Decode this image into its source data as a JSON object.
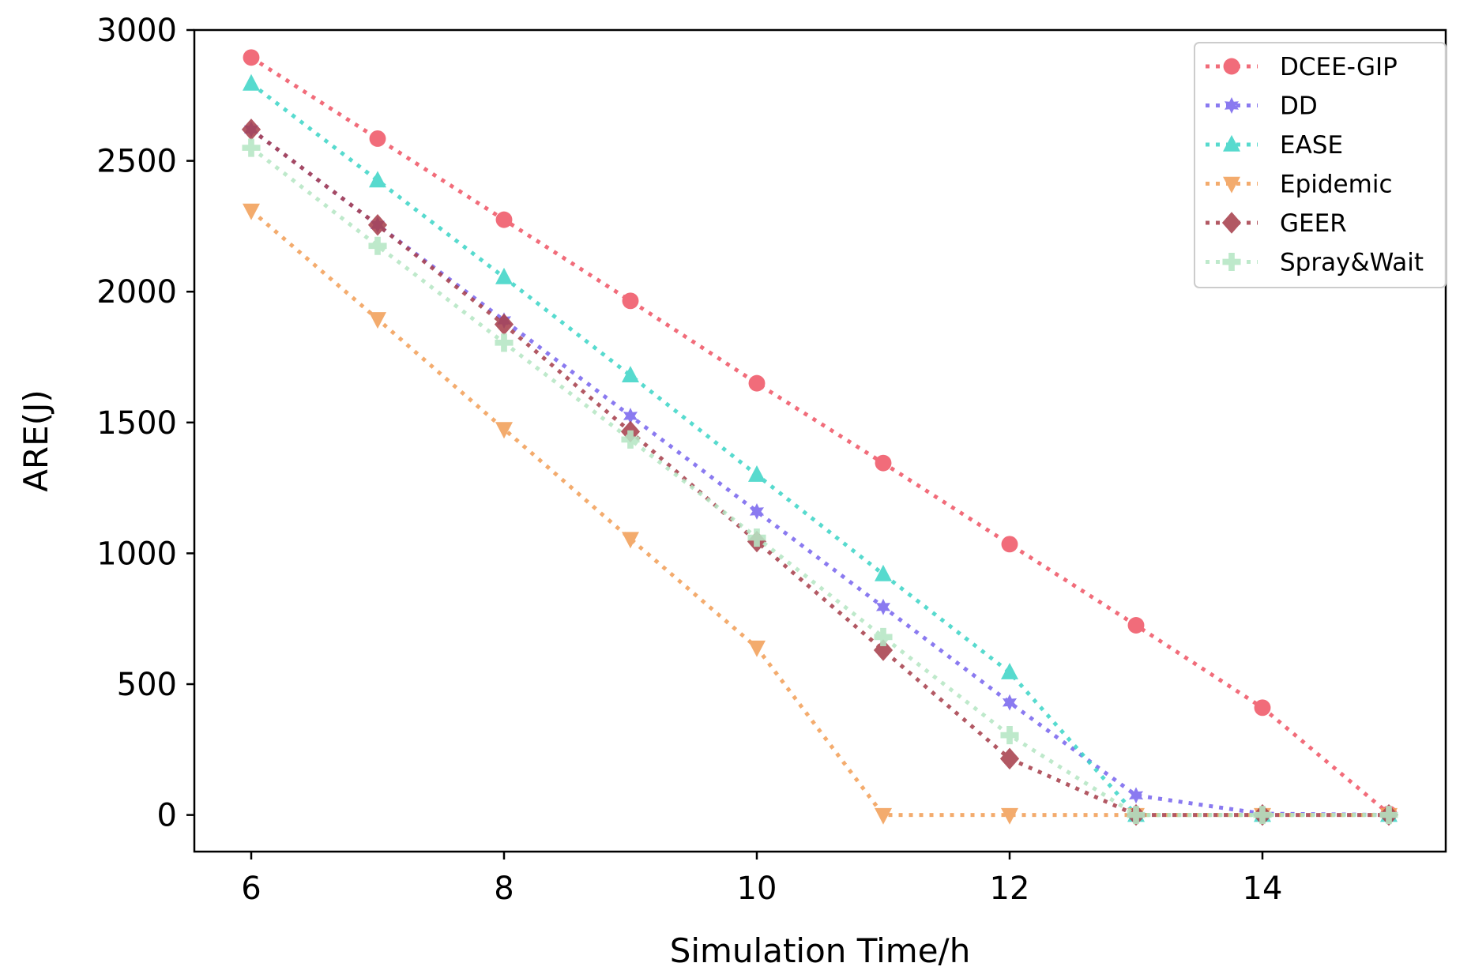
{
  "chart_data": {
    "type": "line",
    "title": "",
    "xlabel": "Simulation Time/h",
    "ylabel": "ARE(J)",
    "x": [
      6,
      7,
      8,
      9,
      10,
      11,
      12,
      13,
      14,
      15
    ],
    "xlim": [
      5.55,
      15.45
    ],
    "ylim": [
      -140,
      3000
    ],
    "xticks": [
      6,
      8,
      10,
      12,
      14
    ],
    "yticks": [
      0,
      500,
      1000,
      1500,
      2000,
      2500,
      3000
    ],
    "grid": false,
    "legend_position": "top-right",
    "series": [
      {
        "name": "DCEE-GIP",
        "color": "#f05868",
        "marker": "circle",
        "values": [
          2895,
          2585,
          2275,
          1965,
          1650,
          1345,
          1035,
          725,
          410,
          5
        ]
      },
      {
        "name": "DD",
        "color": "#7b68ee",
        "marker": "star",
        "values": [
          2620,
          2255,
          1890,
          1525,
          1160,
          795,
          430,
          75,
          5,
          0
        ]
      },
      {
        "name": "EASE",
        "color": "#40d6c8",
        "marker": "triangle-up",
        "values": [
          2795,
          2425,
          2055,
          1680,
          1300,
          920,
          545,
          0,
          0,
          0
        ]
      },
      {
        "name": "Epidemic",
        "color": "#f2a05a",
        "marker": "triangle-down",
        "values": [
          2310,
          1895,
          1475,
          1055,
          640,
          0,
          0,
          0,
          0,
          0
        ]
      },
      {
        "name": "GEER",
        "color": "#a8424e",
        "marker": "diamond",
        "values": [
          2620,
          2255,
          1875,
          1465,
          1045,
          630,
          215,
          0,
          0,
          0
        ]
      },
      {
        "name": "Spray&Wait",
        "color": "#b6e6c4",
        "marker": "plus",
        "values": [
          2550,
          2175,
          1805,
          1435,
          1060,
          680,
          305,
          0,
          0,
          0
        ]
      }
    ]
  }
}
